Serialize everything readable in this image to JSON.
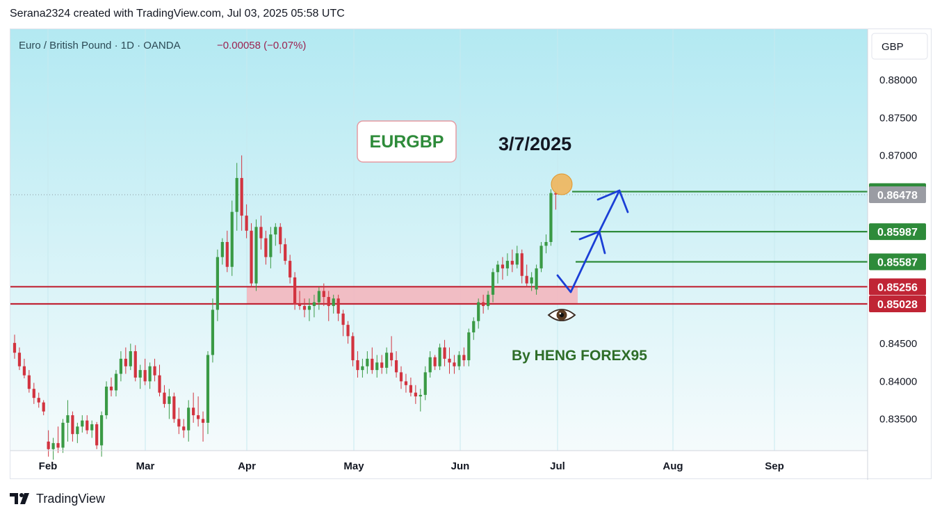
{
  "header": {
    "attribution": "Serana2324 created with TradingView.com, Jul 03, 2025 05:58 UTC"
  },
  "symbol_line": {
    "name": "Euro / British Pound · 1D · OANDA",
    "change": "−0.00058 (−0.07%)"
  },
  "currency_button": "GBP",
  "annotations": {
    "title_box": "EURGBP",
    "date_text": "3/7/2025",
    "author_text": "By HENG FOREX95"
  },
  "footer": {
    "brand": "TradingView"
  },
  "colors": {
    "background_top": "#b3e9f2",
    "background_bottom": "#f5fbfc",
    "bull": "#3a9a45",
    "bear": "#d2333f",
    "zone_fill": "#f4b3bb",
    "zone_line": "#c02535",
    "target_line": "#2e8b3a",
    "arrow": "#1b3fd6",
    "title_green": "#2e8b3a"
  },
  "chart_data": {
    "type": "candlestick",
    "y_axis": {
      "range": [
        0.8308,
        0.8862
      ],
      "ticks": [
        "0.88000",
        "0.87500",
        "0.87000",
        "0.84500",
        "0.84000",
        "0.83500"
      ]
    },
    "x_axis": {
      "ticks": [
        "Feb",
        "Mar",
        "Apr",
        "May",
        "Jun",
        "Jul",
        "Aug",
        "Sep"
      ]
    },
    "price_labels": [
      {
        "text": "0.86519",
        "value": 0.86519,
        "color": "#2e8b3a"
      },
      {
        "text": "0.86478",
        "value": 0.86478,
        "color": "#9a9ca3"
      },
      {
        "text": "0.85987",
        "value": 0.85987,
        "color": "#2e8b3a"
      },
      {
        "text": "0.85587",
        "value": 0.85587,
        "color": "#2e8b3a"
      },
      {
        "text": "0.85256",
        "value": 0.85256,
        "color": "#c02535"
      },
      {
        "text": "0.85028",
        "value": 0.85028,
        "color": "#c02535"
      }
    ],
    "levels": {
      "zone": [
        0.85028,
        0.85256
      ],
      "targets": [
        0.86519,
        0.85987,
        0.85587
      ],
      "last_price": 0.86478
    },
    "candles": [
      [
        0.8451,
        0.8462,
        0.843,
        0.8438
      ],
      [
        0.8438,
        0.8445,
        0.8415,
        0.842
      ],
      [
        0.842,
        0.843,
        0.8404,
        0.8408
      ],
      [
        0.8408,
        0.8415,
        0.8385,
        0.839
      ],
      [
        0.839,
        0.8398,
        0.837,
        0.8378
      ],
      [
        0.8378,
        0.8385,
        0.8365,
        0.8372
      ],
      [
        0.8372,
        0.8375,
        0.8355,
        0.836
      ],
      [
        0.832,
        0.8335,
        0.83,
        0.831
      ],
      [
        0.831,
        0.8325,
        0.8296,
        0.8318
      ],
      [
        0.8318,
        0.834,
        0.8305,
        0.8312
      ],
      [
        0.8312,
        0.835,
        0.8305,
        0.8345
      ],
      [
        0.8345,
        0.8375,
        0.832,
        0.8355
      ],
      [
        0.8355,
        0.836,
        0.832,
        0.833
      ],
      [
        0.833,
        0.8345,
        0.8318,
        0.834
      ],
      [
        0.834,
        0.8355,
        0.8332,
        0.8348
      ],
      [
        0.8348,
        0.8355,
        0.833,
        0.8335
      ],
      [
        0.8335,
        0.8348,
        0.8325,
        0.8343
      ],
      [
        0.8343,
        0.8346,
        0.831,
        0.8315
      ],
      [
        0.8315,
        0.836,
        0.83,
        0.8355
      ],
      [
        0.8355,
        0.84,
        0.835,
        0.8393
      ],
      [
        0.8393,
        0.8405,
        0.838,
        0.8388
      ],
      [
        0.8388,
        0.8415,
        0.838,
        0.841
      ],
      [
        0.841,
        0.844,
        0.84,
        0.843
      ],
      [
        0.843,
        0.8445,
        0.841,
        0.842
      ],
      [
        0.842,
        0.845,
        0.8415,
        0.844
      ],
      [
        0.844,
        0.8448,
        0.84,
        0.8405
      ],
      [
        0.8405,
        0.8422,
        0.839,
        0.8415
      ],
      [
        0.8415,
        0.843,
        0.8395,
        0.84
      ],
      [
        0.84,
        0.8425,
        0.839,
        0.842
      ],
      [
        0.842,
        0.843,
        0.84,
        0.8408
      ],
      [
        0.8408,
        0.8422,
        0.838,
        0.8385
      ],
      [
        0.8385,
        0.8395,
        0.8365,
        0.837
      ],
      [
        0.837,
        0.839,
        0.835,
        0.838
      ],
      [
        0.838,
        0.8385,
        0.8345,
        0.835
      ],
      [
        0.835,
        0.8365,
        0.833,
        0.834
      ],
      [
        0.834,
        0.835,
        0.8325,
        0.8335
      ],
      [
        0.8335,
        0.8375,
        0.832,
        0.8365
      ],
      [
        0.8365,
        0.8385,
        0.8345,
        0.8355
      ],
      [
        0.8355,
        0.838,
        0.834,
        0.835
      ],
      [
        0.835,
        0.836,
        0.832,
        0.8345
      ],
      [
        0.8345,
        0.844,
        0.833,
        0.8435
      ],
      [
        0.8435,
        0.851,
        0.8425,
        0.8495
      ],
      [
        0.8495,
        0.8575,
        0.848,
        0.8565
      ],
      [
        0.8565,
        0.859,
        0.8555,
        0.8585
      ],
      [
        0.8585,
        0.86,
        0.8545,
        0.8552
      ],
      [
        0.8552,
        0.864,
        0.854,
        0.8625
      ],
      [
        0.8625,
        0.869,
        0.86,
        0.867
      ],
      [
        0.867,
        0.87,
        0.86,
        0.862
      ],
      [
        0.862,
        0.8635,
        0.859,
        0.86
      ],
      [
        0.86,
        0.861,
        0.8525,
        0.853
      ],
      [
        0.853,
        0.8615,
        0.852,
        0.8605
      ],
      [
        0.8605,
        0.862,
        0.8575,
        0.859
      ],
      [
        0.859,
        0.86,
        0.8555,
        0.8565
      ],
      [
        0.8565,
        0.8605,
        0.855,
        0.8595
      ],
      [
        0.8595,
        0.861,
        0.858,
        0.8605
      ],
      [
        0.8605,
        0.861,
        0.857,
        0.8582
      ],
      [
        0.8582,
        0.859,
        0.8555,
        0.856
      ],
      [
        0.856,
        0.8568,
        0.853,
        0.8538
      ],
      [
        0.8538,
        0.8545,
        0.8495,
        0.8502
      ],
      [
        0.8502,
        0.852,
        0.8495,
        0.85
      ],
      [
        0.85,
        0.851,
        0.8485,
        0.8495
      ],
      [
        0.8495,
        0.851,
        0.848,
        0.85
      ],
      [
        0.85,
        0.8515,
        0.8485,
        0.8505
      ],
      [
        0.8505,
        0.8525,
        0.8495,
        0.852
      ],
      [
        0.852,
        0.853,
        0.85,
        0.8512
      ],
      [
        0.8512,
        0.852,
        0.848,
        0.85
      ],
      [
        0.85,
        0.8515,
        0.849,
        0.851
      ],
      [
        0.851,
        0.8515,
        0.848,
        0.849
      ],
      [
        0.849,
        0.8495,
        0.846,
        0.8475
      ],
      [
        0.8475,
        0.848,
        0.845,
        0.846
      ],
      [
        0.846,
        0.8465,
        0.842,
        0.8428
      ],
      [
        0.8428,
        0.844,
        0.8405,
        0.8415
      ],
      [
        0.8415,
        0.843,
        0.8405,
        0.842
      ],
      [
        0.842,
        0.844,
        0.841,
        0.843
      ],
      [
        0.843,
        0.8445,
        0.841,
        0.8415
      ],
      [
        0.8415,
        0.8435,
        0.8405,
        0.8425
      ],
      [
        0.8425,
        0.8435,
        0.841,
        0.8418
      ],
      [
        0.8418,
        0.8445,
        0.841,
        0.8438
      ],
      [
        0.8438,
        0.846,
        0.842,
        0.8428
      ],
      [
        0.8428,
        0.844,
        0.8405,
        0.8412
      ],
      [
        0.8412,
        0.842,
        0.839,
        0.84
      ],
      [
        0.84,
        0.841,
        0.8385,
        0.8395
      ],
      [
        0.8395,
        0.8405,
        0.838,
        0.8385
      ],
      [
        0.8385,
        0.8395,
        0.837,
        0.838
      ],
      [
        0.838,
        0.839,
        0.836,
        0.8382
      ],
      [
        0.8382,
        0.842,
        0.8375,
        0.8412
      ],
      [
        0.8412,
        0.844,
        0.8405,
        0.8432
      ],
      [
        0.8432,
        0.8435,
        0.8415,
        0.842
      ],
      [
        0.842,
        0.845,
        0.8415,
        0.8445
      ],
      [
        0.8445,
        0.8455,
        0.842,
        0.843
      ],
      [
        0.843,
        0.8445,
        0.841,
        0.8425
      ],
      [
        0.8425,
        0.8435,
        0.841,
        0.842
      ],
      [
        0.842,
        0.844,
        0.8415,
        0.8435
      ],
      [
        0.8435,
        0.8445,
        0.842,
        0.8428
      ],
      [
        0.8428,
        0.847,
        0.842,
        0.8465
      ],
      [
        0.8465,
        0.8485,
        0.8455,
        0.848
      ],
      [
        0.848,
        0.851,
        0.847,
        0.8505
      ],
      [
        0.8505,
        0.8515,
        0.849,
        0.85
      ],
      [
        0.85,
        0.852,
        0.8495,
        0.8515
      ],
      [
        0.8515,
        0.855,
        0.8505,
        0.8545
      ],
      [
        0.8545,
        0.856,
        0.853,
        0.8555
      ],
      [
        0.8555,
        0.8565,
        0.8535,
        0.855
      ],
      [
        0.855,
        0.857,
        0.854,
        0.856
      ],
      [
        0.856,
        0.8575,
        0.8545,
        0.8555
      ],
      [
        0.8555,
        0.858,
        0.855,
        0.857
      ],
      [
        0.857,
        0.8575,
        0.853,
        0.854
      ],
      [
        0.854,
        0.8555,
        0.8525,
        0.853
      ],
      [
        0.853,
        0.8545,
        0.852,
        0.8538
      ],
      [
        0.8522,
        0.8555,
        0.8515,
        0.855
      ],
      [
        0.855,
        0.8585,
        0.8545,
        0.858
      ],
      [
        0.858,
        0.8595,
        0.857,
        0.8585
      ],
      [
        0.8585,
        0.8655,
        0.858,
        0.865
      ],
      [
        0.865,
        0.8652,
        0.8628,
        0.8648
      ]
    ]
  }
}
